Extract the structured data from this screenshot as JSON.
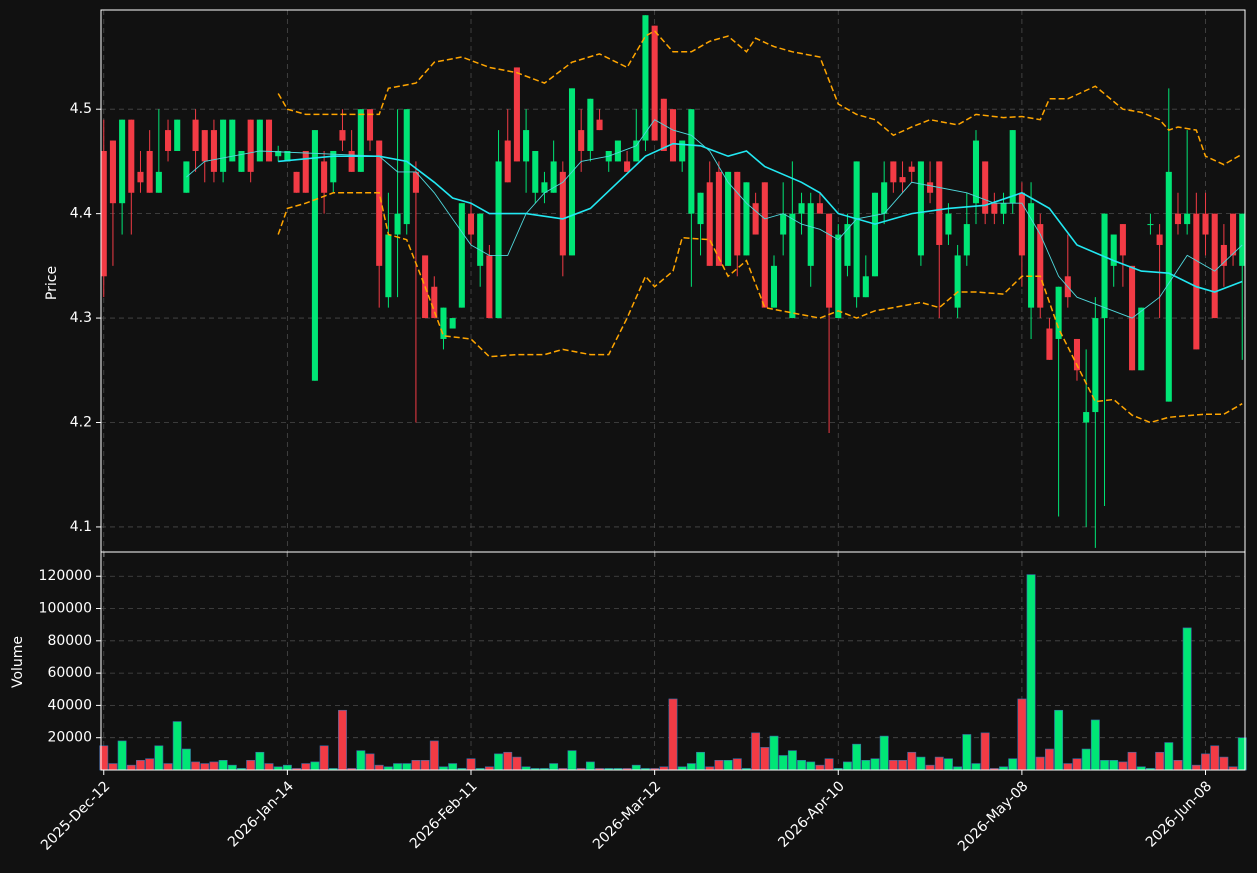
{
  "chart_data": [
    {
      "type": "candlestick",
      "ylabel": "Price",
      "up_color": "#00e676",
      "down_color": "#f23b45",
      "xlim": [
        -0.3,
        124.3
      ],
      "xticks": [
        0,
        20,
        40,
        60,
        80,
        100,
        120
      ],
      "ylim": [
        4.076,
        4.595
      ],
      "yticks": [
        4.1,
        4.2,
        4.3,
        4.4,
        4.5
      ],
      "grid": true,
      "open": [
        4.46,
        4.47,
        4.41,
        4.49,
        4.44,
        4.46,
        4.42,
        4.48,
        4.46,
        4.42,
        4.49,
        4.48,
        4.48,
        4.44,
        4.45,
        4.44,
        4.49,
        4.45,
        4.49,
        4.455,
        4.45,
        4.44,
        4.46,
        4.24,
        4.45,
        4.43,
        4.48,
        4.46,
        4.44,
        4.5,
        4.47,
        4.32,
        4.38,
        4.39,
        4.44,
        4.36,
        4.33,
        4.28,
        4.29,
        4.31,
        4.4,
        4.35,
        4.36,
        4.3,
        4.47,
        4.54,
        4.45,
        4.42,
        4.42,
        4.42,
        4.44,
        4.36,
        4.48,
        4.46,
        4.49,
        4.45,
        4.45,
        4.45,
        4.45,
        4.47,
        4.58,
        4.51,
        4.5,
        4.45,
        4.4,
        4.39,
        4.43,
        4.44,
        4.35,
        4.44,
        4.36,
        4.41,
        4.43,
        4.31,
        4.38,
        4.3,
        4.4,
        4.35,
        4.41,
        4.4,
        4.3,
        4.35,
        4.32,
        4.32,
        4.34,
        4.4,
        4.45,
        4.435,
        4.445,
        4.36,
        4.43,
        4.45,
        4.38,
        4.31,
        4.36,
        4.41,
        4.45,
        4.41,
        4.4,
        4.41,
        4.42,
        4.31,
        4.39,
        4.29,
        4.28,
        4.34,
        4.28,
        4.2,
        4.21,
        4.3,
        4.35,
        4.39,
        4.35,
        4.25,
        4.39,
        4.38,
        4.22,
        4.4,
        4.39,
        4.4,
        4.4,
        4.4,
        4.37,
        4.4,
        4.35
      ],
      "high": [
        4.49,
        4.47,
        4.49,
        4.49,
        4.46,
        4.48,
        4.5,
        4.49,
        4.49,
        4.45,
        4.5,
        4.48,
        4.49,
        4.49,
        4.49,
        4.46,
        4.49,
        4.49,
        4.49,
        4.465,
        4.46,
        4.44,
        4.46,
        4.48,
        4.46,
        4.46,
        4.5,
        4.48,
        4.5,
        4.5,
        4.47,
        4.42,
        4.5,
        4.5,
        4.45,
        4.36,
        4.34,
        4.31,
        4.3,
        4.41,
        4.41,
        4.4,
        4.37,
        4.48,
        4.5,
        4.54,
        4.5,
        4.46,
        4.44,
        4.47,
        4.45,
        4.52,
        4.5,
        4.51,
        4.5,
        4.46,
        4.47,
        4.46,
        4.5,
        4.59,
        4.58,
        4.51,
        4.5,
        4.47,
        4.5,
        4.42,
        4.45,
        4.45,
        4.44,
        4.44,
        4.43,
        4.42,
        4.43,
        4.36,
        4.43,
        4.45,
        4.42,
        4.42,
        4.42,
        4.4,
        4.39,
        4.4,
        4.45,
        4.36,
        4.42,
        4.45,
        4.45,
        4.45,
        4.45,
        4.45,
        4.45,
        4.45,
        4.41,
        4.37,
        4.42,
        4.48,
        4.45,
        4.42,
        4.42,
        4.48,
        4.43,
        4.43,
        4.4,
        4.3,
        4.33,
        4.38,
        4.28,
        4.27,
        4.32,
        4.4,
        4.38,
        4.39,
        4.35,
        4.31,
        4.4,
        4.39,
        4.52,
        4.42,
        4.48,
        4.42,
        4.42,
        4.4,
        4.39,
        4.4,
        4.4
      ],
      "low": [
        4.32,
        4.35,
        4.38,
        4.38,
        4.42,
        4.42,
        4.42,
        4.45,
        4.46,
        4.42,
        4.44,
        4.43,
        4.43,
        4.43,
        4.45,
        4.44,
        4.43,
        4.45,
        4.45,
        4.45,
        4.45,
        4.42,
        4.42,
        4.24,
        4.4,
        4.42,
        4.46,
        4.44,
        4.44,
        4.46,
        4.31,
        4.31,
        4.32,
        4.38,
        4.2,
        4.3,
        4.3,
        4.27,
        4.29,
        4.31,
        4.37,
        4.33,
        4.3,
        4.3,
        4.43,
        4.45,
        4.42,
        4.41,
        4.41,
        4.42,
        4.34,
        4.36,
        4.44,
        4.45,
        4.48,
        4.44,
        4.45,
        4.44,
        4.45,
        4.46,
        4.47,
        4.46,
        4.45,
        4.44,
        4.33,
        4.36,
        4.35,
        4.35,
        4.35,
        4.34,
        4.36,
        4.38,
        4.31,
        4.31,
        4.36,
        4.3,
        4.38,
        4.33,
        4.4,
        4.19,
        4.3,
        4.34,
        4.31,
        4.32,
        4.34,
        4.39,
        4.42,
        4.42,
        4.43,
        4.35,
        4.41,
        4.3,
        4.37,
        4.3,
        4.35,
        4.39,
        4.39,
        4.39,
        4.39,
        4.4,
        4.33,
        4.28,
        4.3,
        4.26,
        4.11,
        4.31,
        4.24,
        4.1,
        4.08,
        4.12,
        4.33,
        4.33,
        4.25,
        4.25,
        4.38,
        4.3,
        4.22,
        4.38,
        4.38,
        4.27,
        4.36,
        4.3,
        4.33,
        4.35,
        4.26
      ],
      "close": [
        4.34,
        4.41,
        4.49,
        4.42,
        4.43,
        4.42,
        4.44,
        4.46,
        4.49,
        4.45,
        4.46,
        4.45,
        4.44,
        4.49,
        4.49,
        4.46,
        4.44,
        4.49,
        4.45,
        4.46,
        4.46,
        4.42,
        4.42,
        4.48,
        4.42,
        4.46,
        4.47,
        4.44,
        4.5,
        4.47,
        4.35,
        4.38,
        4.4,
        4.5,
        4.42,
        4.3,
        4.3,
        4.31,
        4.3,
        4.41,
        4.38,
        4.4,
        4.3,
        4.45,
        4.43,
        4.45,
        4.48,
        4.46,
        4.43,
        4.45,
        4.36,
        4.52,
        4.46,
        4.51,
        4.48,
        4.46,
        4.47,
        4.44,
        4.47,
        4.59,
        4.47,
        4.46,
        4.45,
        4.47,
        4.5,
        4.42,
        4.35,
        4.35,
        4.44,
        4.36,
        4.43,
        4.38,
        4.31,
        4.35,
        4.4,
        4.4,
        4.41,
        4.41,
        4.4,
        4.31,
        4.38,
        4.39,
        4.45,
        4.34,
        4.42,
        4.43,
        4.43,
        4.43,
        4.44,
        4.45,
        4.42,
        4.37,
        4.4,
        4.36,
        4.39,
        4.47,
        4.4,
        4.4,
        4.41,
        4.48,
        4.36,
        4.41,
        4.31,
        4.26,
        4.33,
        4.32,
        4.25,
        4.21,
        4.3,
        4.4,
        4.38,
        4.36,
        4.25,
        4.31,
        4.39,
        4.37,
        4.44,
        4.39,
        4.4,
        4.27,
        4.38,
        4.3,
        4.35,
        4.36,
        4.4
      ],
      "lines": [
        {
          "color": "#4fd8dc",
          "width": 0.9,
          "dash": false,
          "x": [
            9,
            11,
            14,
            17,
            30,
            32,
            34,
            36,
            38,
            40,
            42,
            44,
            46,
            48,
            50,
            52,
            55,
            58,
            60,
            62,
            64,
            66,
            68,
            70,
            72,
            74,
            76,
            78,
            80,
            82,
            85,
            88,
            91,
            94,
            97,
            100,
            102,
            104,
            106,
            109,
            112,
            115,
            118,
            121,
            124
          ],
          "values": [
            4.435,
            4.45,
            4.455,
            4.46,
            4.455,
            4.44,
            4.44,
            4.42,
            4.395,
            4.37,
            4.36,
            4.36,
            4.4,
            4.42,
            4.43,
            4.45,
            4.455,
            4.465,
            4.49,
            4.48,
            4.475,
            4.46,
            4.43,
            4.41,
            4.395,
            4.4,
            4.39,
            4.385,
            4.375,
            4.395,
            4.4,
            4.43,
            4.425,
            4.42,
            4.41,
            4.41,
            4.38,
            4.34,
            4.32,
            4.31,
            4.3,
            4.32,
            4.36,
            4.345,
            4.37
          ]
        },
        {
          "color": "#22e8f2",
          "width": 1.6,
          "dash": false,
          "x": [
            19,
            25,
            30,
            33,
            36,
            38,
            40,
            42,
            46,
            50,
            53,
            56,
            59,
            62,
            65,
            68,
            70,
            72,
            76,
            78,
            80,
            84,
            88,
            92,
            96,
            100,
            103,
            106,
            110,
            113,
            116,
            119,
            121,
            124
          ],
          "values": [
            4.45,
            4.455,
            4.455,
            4.45,
            4.43,
            4.415,
            4.41,
            4.4,
            4.4,
            4.395,
            4.405,
            4.43,
            4.455,
            4.467,
            4.465,
            4.455,
            4.46,
            4.445,
            4.43,
            4.42,
            4.4,
            4.39,
            4.4,
            4.405,
            4.408,
            4.42,
            4.405,
            4.37,
            4.355,
            4.345,
            4.343,
            4.33,
            4.325,
            4.335
          ]
        },
        {
          "color": "#ffa500",
          "width": 1.5,
          "dash": true,
          "x": [
            19,
            20,
            22,
            25,
            30,
            31,
            34,
            36,
            39,
            42,
            45,
            48,
            51,
            54,
            57,
            59,
            60,
            62,
            64,
            66,
            68,
            70,
            71,
            73,
            75,
            78,
            80,
            82,
            84,
            86,
            88,
            90,
            93,
            95,
            98,
            100,
            102,
            103,
            105,
            108,
            111,
            113,
            115,
            116,
            117,
            119,
            120,
            122,
            124
          ],
          "values": [
            4.515,
            4.5,
            4.495,
            4.495,
            4.495,
            4.52,
            4.525,
            4.545,
            4.55,
            4.54,
            4.535,
            4.525,
            4.545,
            4.553,
            4.54,
            4.57,
            4.575,
            4.555,
            4.555,
            4.565,
            4.57,
            4.555,
            4.568,
            4.56,
            4.555,
            4.55,
            4.505,
            4.495,
            4.49,
            4.475,
            4.483,
            4.49,
            4.485,
            4.495,
            4.492,
            4.493,
            4.49,
            4.51,
            4.51,
            4.522,
            4.5,
            4.497,
            4.49,
            4.48,
            4.483,
            4.48,
            4.455,
            4.447,
            4.457
          ]
        },
        {
          "color": "#ffa500",
          "width": 1.5,
          "dash": true,
          "x": [
            19,
            20,
            22,
            25,
            30,
            31,
            33,
            35,
            37,
            40,
            42,
            45,
            48,
            50,
            53,
            55,
            57,
            59,
            60,
            62,
            63,
            66,
            68,
            70,
            72,
            75,
            78,
            80,
            82,
            84,
            86,
            89,
            91,
            93,
            95,
            98,
            100,
            102,
            104,
            106,
            108,
            110,
            112,
            114,
            116,
            120,
            122,
            124
          ],
          "values": [
            4.38,
            4.405,
            4.41,
            4.42,
            4.42,
            4.38,
            4.375,
            4.33,
            4.283,
            4.28,
            4.263,
            4.265,
            4.265,
            4.27,
            4.265,
            4.265,
            4.3,
            4.34,
            4.33,
            4.345,
            4.377,
            4.375,
            4.34,
            4.355,
            4.31,
            4.305,
            4.3,
            4.307,
            4.3,
            4.307,
            4.31,
            4.315,
            4.31,
            4.325,
            4.325,
            4.323,
            4.34,
            4.34,
            4.29,
            4.255,
            4.22,
            4.222,
            4.207,
            4.2,
            4.205,
            4.208,
            4.208,
            4.218
          ]
        }
      ]
    },
    {
      "type": "bar",
      "ylabel": "Volume",
      "up_color": "#00e676",
      "down_color": "#f23b45",
      "edge_color": "#3a6ea8",
      "xlim": [
        -0.3,
        124.3
      ],
      "xticks": [
        {
          "value": 0,
          "label": "2025-Dec-12"
        },
        {
          "value": 20,
          "label": "2026-Jan-14"
        },
        {
          "value": 40,
          "label": "2026-Feb-11"
        },
        {
          "value": 60,
          "label": "2026-Mar-12"
        },
        {
          "value": 80,
          "label": "2026-Apr-10"
        },
        {
          "value": 100,
          "label": "2026-May-08"
        },
        {
          "value": 120,
          "label": "2026-Jun-08"
        }
      ],
      "ylim": [
        0,
        135000
      ],
      "yticks": [
        20000,
        40000,
        60000,
        80000,
        100000,
        120000
      ],
      "grid": true,
      "values": [
        15000,
        4000,
        18000,
        3000,
        6000,
        7000,
        15000,
        4000,
        30000,
        13000,
        5000,
        4000,
        5000,
        6000,
        3000,
        1000,
        6000,
        11000,
        4000,
        2000,
        3000,
        1000,
        4000,
        5000,
        15000,
        1000,
        37000,
        1000,
        12000,
        10000,
        3000,
        2000,
        4000,
        4000,
        6000,
        6000,
        18000,
        2000,
        4000,
        1000,
        7000,
        1000,
        2000,
        10000,
        11000,
        8000,
        2000,
        1000,
        1000,
        4000,
        1000,
        12000,
        1000,
        5000,
        1000,
        1000,
        1000,
        1000,
        3000,
        1000,
        1000,
        2000,
        44000,
        2000,
        4000,
        11000,
        2000,
        6000,
        6000,
        7000,
        1000,
        23000,
        14000,
        21000,
        9000,
        12000,
        6000,
        5000,
        3000,
        7000,
        1000,
        5000,
        16000,
        6000,
        7000,
        21000,
        6000,
        6000,
        11000,
        8000,
        3000,
        8000,
        7000,
        2000,
        22000,
        4000,
        23000,
        1000,
        2000,
        7000,
        44000,
        121000,
        8000,
        13000,
        37000,
        4000,
        7000,
        13000,
        31000,
        6000,
        6000,
        5000,
        11000,
        2000,
        1000,
        11000,
        17000,
        6000,
        88000,
        3000,
        10000,
        15000,
        8000,
        2000,
        20000
      ]
    }
  ]
}
